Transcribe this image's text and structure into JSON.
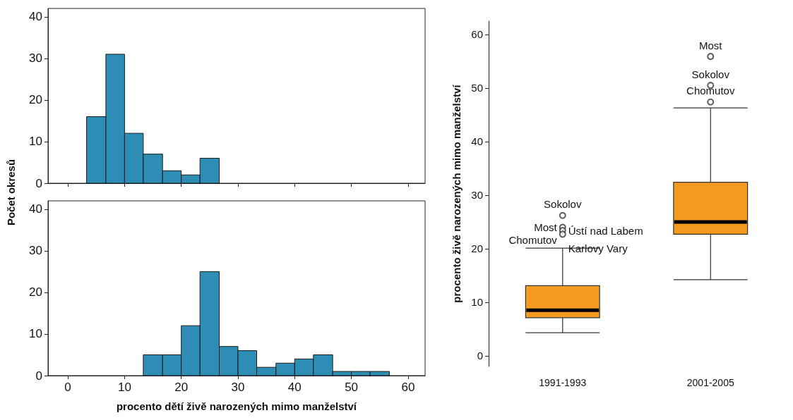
{
  "chart_data": [
    {
      "type": "histogram",
      "ylabel": "Počet okresů",
      "bins": [
        3.3,
        6.7,
        10,
        13.3,
        16.7,
        20,
        23.3,
        26.7
      ],
      "values": [
        16,
        31,
        12,
        7,
        3,
        2,
        6
      ],
      "color": "#2e8db5",
      "xlim": [
        -3.5,
        63
      ],
      "xticks": [
        0,
        10,
        20,
        30,
        40,
        50,
        60
      ],
      "ylim": [
        0,
        42
      ],
      "yticks": [
        0,
        10,
        20,
        30,
        40
      ],
      "tick_labels": "y"
    },
    {
      "type": "histogram",
      "xlabel": "procento dětí živě narozených mimo manželství",
      "bins": [
        13.3,
        16.7,
        20,
        23.3,
        26.7,
        30,
        33.3,
        36.7,
        40,
        43.3,
        46.7,
        50,
        53.3,
        56.7
      ],
      "values": [
        5,
        5,
        12,
        25,
        7,
        6,
        2,
        3,
        4,
        5,
        1,
        1,
        1
      ],
      "color": "#2e8db5",
      "xlim": [
        -3.5,
        63
      ],
      "xticks": [
        0,
        10,
        20,
        30,
        40,
        50,
        60
      ],
      "ylim": [
        0,
        42
      ],
      "yticks": [
        0,
        10,
        20,
        30,
        40
      ]
    },
    {
      "type": "box",
      "ylabel": "procento živě narozených mimo manželství",
      "categories": [
        "1991-1993",
        "2001-2005"
      ],
      "color": "#f39a1f",
      "ylim": [
        -2,
        62.5
      ],
      "yticks": [
        0,
        10,
        20,
        30,
        40,
        50,
        60
      ],
      "boxes": [
        {
          "low": 4.3,
          "q1": 7.1,
          "median": 8.5,
          "q3": 13.1,
          "high": 20.1,
          "outliers": [
            26.2,
            24.0,
            23.4,
            22.7
          ]
        },
        {
          "low": 14.2,
          "q1": 22.7,
          "median": 25.0,
          "q3": 32.4,
          "high": 46.3,
          "outliers": [
            55.9,
            50.5,
            47.4
          ]
        }
      ],
      "annotations": [
        "Sokolov",
        "Most",
        "Ústí nad Labem",
        "Chomutov",
        "Karlovy Vary",
        "Most",
        "Sokolov",
        "Chomutov"
      ]
    }
  ]
}
